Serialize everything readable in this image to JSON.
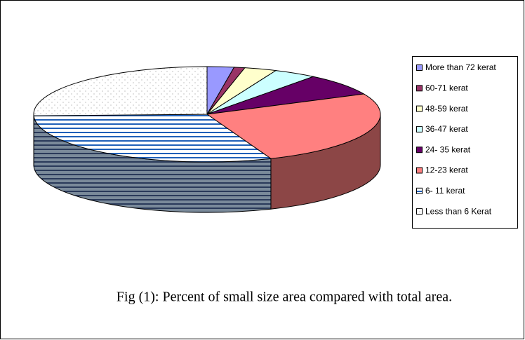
{
  "chart_data": {
    "type": "pie3d",
    "caption": "Fig (1): Percent of small size area compared with total area.",
    "categories": [
      "More than 72 kerat",
      "60-71 kerat",
      "48-59 kerat",
      "36-47 kerat",
      "24- 35 kerat",
      "12-23 kerat",
      "6- 11 kerat",
      "Less than 6 Kerat"
    ],
    "values": [
      2.5,
      1,
      3,
      4,
      7.5,
      26,
      30.5,
      25.5
    ],
    "colors": [
      "#9999ff",
      "#993366",
      "#ffffcc",
      "#ccffff",
      "#660066",
      "#ff8080",
      "#0066cc",
      "#ffffff"
    ],
    "patterns": [
      null,
      null,
      null,
      null,
      null,
      null,
      "horizontal-stripes",
      "dots"
    ],
    "legend": "right"
  }
}
